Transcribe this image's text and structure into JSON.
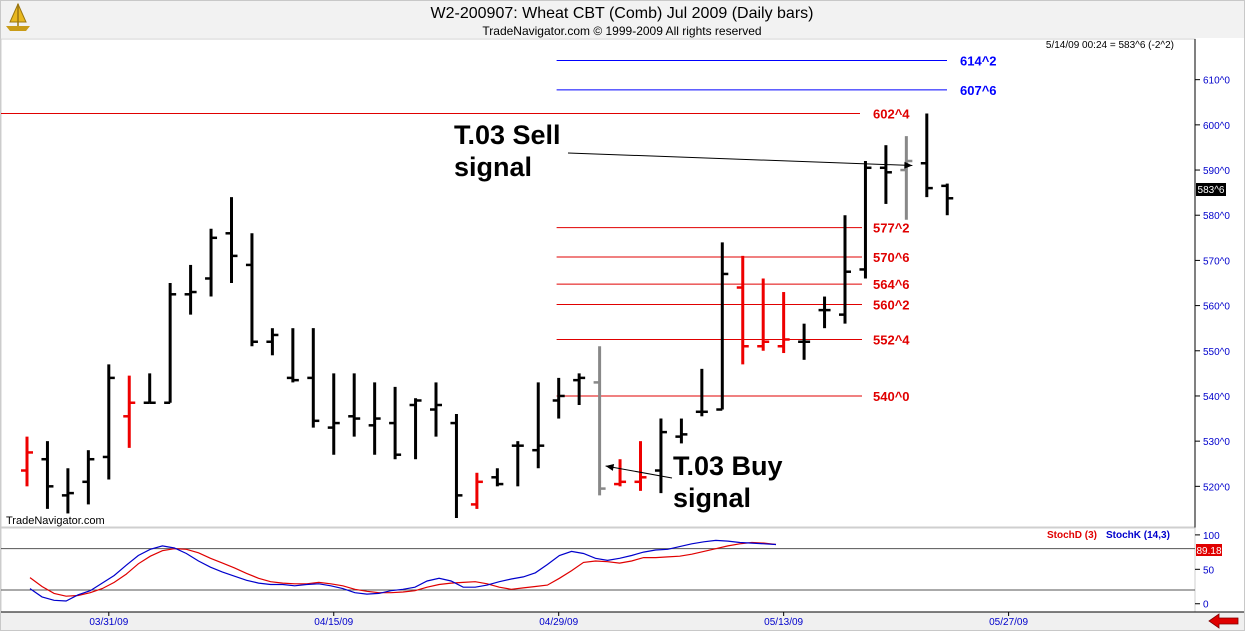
{
  "header": {
    "title": "W2-200907:  Wheat CBT (Comb) Jul 2009  (Daily bars)",
    "copyright": "TradeNavigator.com © 1999-2009 All rights reserved",
    "status": "5/14/09 00:24 = 583^6 (-2^2)",
    "last_price": "583^6",
    "watermark": "TradeNavigator.com"
  },
  "chart_data": [
    {
      "type": "ohlc",
      "y_ticks": [
        {
          "value": 520,
          "label": "520^0"
        },
        {
          "value": 530,
          "label": "530^0"
        },
        {
          "value": 540,
          "label": "540^0"
        },
        {
          "value": 550,
          "label": "550^0"
        },
        {
          "value": 560,
          "label": "560^0"
        },
        {
          "value": 570,
          "label": "570^0"
        },
        {
          "value": 580,
          "label": "580^0"
        },
        {
          "value": 590,
          "label": "590^0"
        },
        {
          "value": 600,
          "label": "600^0"
        },
        {
          "value": 610,
          "label": "610^0"
        }
      ],
      "ylim": [
        511,
        619
      ],
      "bars": [
        {
          "i": 0,
          "o": 523.5,
          "h": 531,
          "l": 520,
          "c": 527.5,
          "color": "red"
        },
        {
          "i": 1,
          "o": 526,
          "h": 530,
          "l": 515,
          "c": 520,
          "color": "black"
        },
        {
          "i": 2,
          "o": 518,
          "h": 524,
          "l": 514,
          "c": 518.5,
          "color": "black"
        },
        {
          "i": 3,
          "o": 521,
          "h": 528,
          "l": 516,
          "c": 526,
          "color": "black"
        },
        {
          "i": 4,
          "o": 526.5,
          "h": 547,
          "l": 521.5,
          "c": 544,
          "color": "black"
        },
        {
          "i": 5,
          "o": 535.5,
          "h": 544.5,
          "l": 528.5,
          "c": 538.5,
          "color": "red"
        },
        {
          "i": 6,
          "o": 538.5,
          "h": 545,
          "l": 538.5,
          "c": 538.5,
          "color": "black"
        },
        {
          "i": 7,
          "o": 538.5,
          "h": 565,
          "l": 538.5,
          "c": 562.5,
          "color": "black"
        },
        {
          "i": 8,
          "o": 562.5,
          "h": 569,
          "l": 558,
          "c": 563,
          "color": "black"
        },
        {
          "i": 9,
          "o": 566,
          "h": 577,
          "l": 562,
          "c": 575,
          "color": "black"
        },
        {
          "i": 10,
          "o": 576,
          "h": 584,
          "l": 565,
          "c": 571,
          "color": "black"
        },
        {
          "i": 11,
          "o": 569,
          "h": 576,
          "l": 551,
          "c": 552,
          "color": "black"
        },
        {
          "i": 12,
          "o": 552,
          "h": 555,
          "l": 549,
          "c": 553.5,
          "color": "black"
        },
        {
          "i": 13,
          "o": 544,
          "h": 555,
          "l": 543,
          "c": 543.5,
          "color": "black"
        },
        {
          "i": 14,
          "o": 544,
          "h": 555,
          "l": 533,
          "c": 534.5,
          "color": "black"
        },
        {
          "i": 15,
          "o": 533,
          "h": 545,
          "l": 527,
          "c": 534,
          "color": "black"
        },
        {
          "i": 16,
          "o": 535.5,
          "h": 545,
          "l": 531,
          "c": 535,
          "color": "black"
        },
        {
          "i": 17,
          "o": 533.5,
          "h": 543,
          "l": 527,
          "c": 535,
          "color": "black"
        },
        {
          "i": 18,
          "o": 534,
          "h": 542,
          "l": 526,
          "c": 527,
          "color": "black"
        },
        {
          "i": 19,
          "o": 538,
          "h": 539.5,
          "l": 526,
          "c": 539,
          "color": "black"
        },
        {
          "i": 20,
          "o": 537,
          "h": 543,
          "l": 531,
          "c": 538,
          "color": "black"
        },
        {
          "i": 21,
          "o": 534,
          "h": 536,
          "l": 513,
          "c": 518,
          "color": "black"
        },
        {
          "i": 22,
          "o": 516,
          "h": 523,
          "l": 515,
          "c": 521,
          "color": "red"
        },
        {
          "i": 23,
          "o": 522,
          "h": 524,
          "l": 520,
          "c": 520.5,
          "color": "black"
        },
        {
          "i": 24,
          "o": 529,
          "h": 530,
          "l": 520,
          "c": 529,
          "color": "black"
        },
        {
          "i": 25,
          "o": 528,
          "h": 543,
          "l": 524,
          "c": 529,
          "color": "black"
        },
        {
          "i": 26,
          "o": 539,
          "h": 544,
          "l": 535,
          "c": 540,
          "color": "black"
        },
        {
          "i": 27,
          "o": 543.5,
          "h": 545,
          "l": 538,
          "c": 544,
          "color": "black"
        },
        {
          "i": 28,
          "o": 543,
          "h": 551,
          "l": 518,
          "c": 519.5,
          "color": "gray"
        },
        {
          "i": 29,
          "o": 520.5,
          "h": 526,
          "l": 520,
          "c": 521,
          "color": "red"
        },
        {
          "i": 30,
          "o": 521,
          "h": 530,
          "l": 519,
          "c": 522,
          "color": "red"
        },
        {
          "i": 31,
          "o": 523.5,
          "h": 535,
          "l": 518.5,
          "c": 532,
          "color": "black"
        },
        {
          "i": 32,
          "o": 531,
          "h": 535,
          "l": 529.5,
          "c": 531.5,
          "color": "black"
        },
        {
          "i": 33,
          "o": 536.5,
          "h": 546,
          "l": 535.5,
          "c": 536.5,
          "color": "black"
        },
        {
          "i": 34,
          "o": 537,
          "h": 574,
          "l": 537,
          "c": 567,
          "color": "black"
        },
        {
          "i": 35,
          "o": 564,
          "h": 571,
          "l": 547,
          "c": 551,
          "color": "red"
        },
        {
          "i": 36,
          "o": 551,
          "h": 566,
          "l": 550,
          "c": 552,
          "color": "red"
        },
        {
          "i": 37,
          "o": 551,
          "h": 563,
          "l": 549.5,
          "c": 552.5,
          "color": "red"
        },
        {
          "i": 38,
          "o": 552,
          "h": 556,
          "l": 548,
          "c": 552,
          "color": "black"
        },
        {
          "i": 39,
          "o": 559,
          "h": 562,
          "l": 555,
          "c": 559,
          "color": "black"
        },
        {
          "i": 40,
          "o": 558,
          "h": 580,
          "l": 556,
          "c": 567.5,
          "color": "black"
        },
        {
          "i": 41,
          "o": 568,
          "h": 592,
          "l": 566,
          "c": 590.5,
          "color": "black"
        },
        {
          "i": 42,
          "o": 590.5,
          "h": 595.5,
          "l": 582.5,
          "c": 589.5,
          "color": "black"
        },
        {
          "i": 43,
          "o": 590,
          "h": 597.5,
          "l": 579,
          "c": 592,
          "color": "gray"
        },
        {
          "i": 44,
          "o": 591.5,
          "h": 602.5,
          "l": 584,
          "c": 586,
          "color": "black"
        },
        {
          "i": 45,
          "o": 586.5,
          "h": 587,
          "l": 580,
          "c": 583.75,
          "color": "black"
        }
      ],
      "levels": [
        {
          "value": 614.25,
          "label": "614^2",
          "color": "#0000ff",
          "start_bar": 28
        },
        {
          "value": 607.75,
          "label": "607^6",
          "color": "#0000ff",
          "start_bar": 28
        },
        {
          "value": 602.5,
          "label": "602^4",
          "color": "#e00000",
          "start_bar": -1
        },
        {
          "value": 577.25,
          "label": "577^2",
          "color": "#e00000",
          "start_bar": 28
        },
        {
          "value": 570.75,
          "label": "570^6",
          "color": "#e00000",
          "start_bar": 28
        },
        {
          "value": 564.75,
          "label": "564^6",
          "color": "#e00000",
          "start_bar": 28
        },
        {
          "value": 560.25,
          "label": "560^2",
          "color": "#e00000",
          "start_bar": 28
        },
        {
          "value": 552.5,
          "label": "552^4",
          "color": "#e00000",
          "start_bar": 28
        },
        {
          "value": 540.0,
          "label": "540^0",
          "color": "#e00000",
          "start_bar": 28
        }
      ],
      "annotations": [
        {
          "lines": [
            "T.03 Sell",
            "signal"
          ],
          "arrow_to_bar": 43,
          "arrow_to_value": 591
        },
        {
          "lines": [
            "T.03 Buy",
            "signal"
          ],
          "arrow_to_bar": 28,
          "arrow_to_value": 524.5
        }
      ]
    },
    {
      "type": "line",
      "title": "",
      "legend": [
        {
          "name": "StochD (3)",
          "color": "#e00000"
        },
        {
          "name": "StochK (14,3)",
          "color": "#0000cc"
        }
      ],
      "last_value": "89.18",
      "y_ticks": [
        {
          "value": 0,
          "label": "0"
        },
        {
          "value": 50,
          "label": "50"
        },
        {
          "value": 100,
          "label": "100"
        }
      ],
      "ylim": [
        -12,
        110
      ],
      "reference_lines": [
        20,
        80
      ],
      "series": [
        {
          "name": "StochD (3)",
          "color": "#e00000",
          "values": [
            38,
            25,
            15,
            11,
            12,
            16,
            22,
            31,
            43,
            58,
            69,
            77,
            80,
            79,
            74,
            66,
            59,
            52,
            44,
            37,
            32,
            30,
            29,
            29,
            31,
            29,
            26,
            21,
            18,
            16,
            16,
            17,
            19,
            24,
            28,
            30,
            31,
            32,
            29,
            24,
            21,
            23,
            25,
            27,
            37,
            48,
            60,
            62,
            61,
            59,
            62,
            67,
            67,
            68,
            69,
            72,
            76,
            80,
            84,
            87,
            89,
            88,
            86
          ]
        },
        {
          "name": "StochK (14,3)",
          "color": "#0000cc",
          "values": [
            22,
            10,
            5,
            4,
            13,
            19,
            30,
            41,
            56,
            70,
            79,
            84,
            81,
            73,
            62,
            53,
            46,
            40,
            34,
            30,
            28,
            28,
            26,
            28,
            29,
            26,
            22,
            16,
            14,
            15,
            19,
            21,
            24,
            33,
            37,
            33,
            24,
            24,
            27,
            32,
            36,
            39,
            45,
            57,
            70,
            76,
            73,
            66,
            63,
            66,
            70,
            75,
            78,
            79,
            83,
            87,
            90,
            92,
            91,
            89,
            88,
            87,
            86
          ]
        }
      ]
    }
  ],
  "x_axis": {
    "labels": [
      {
        "label": "03/31/09",
        "bar": 4
      },
      {
        "label": "04/15/09",
        "bar": 15
      },
      {
        "label": "04/29/09",
        "bar": 26
      },
      {
        "label": "05/13/09",
        "bar": 37
      },
      {
        "label": "05/27/09",
        "bar": 48
      }
    ]
  },
  "colors": {
    "axis_text": "#0000cc",
    "level_red": "#e00000",
    "level_blue": "#0000ff",
    "bar_black": "#000000",
    "bar_red": "#ee0000",
    "bar_gray": "#888888",
    "panel_bg": "#f0f0f0"
  },
  "icons": {
    "logo": "trade-navigator-logo-icon",
    "nav": "red-left-arrow-icon"
  }
}
